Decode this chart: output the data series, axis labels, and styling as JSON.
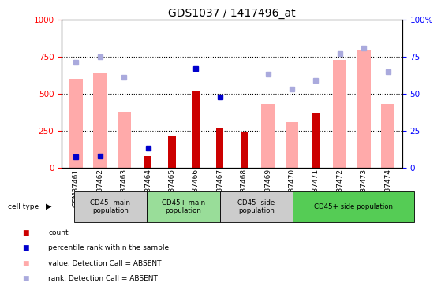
{
  "title": "GDS1037 / 1417496_at",
  "samples": [
    "GSM37461",
    "GSM37462",
    "GSM37463",
    "GSM37464",
    "GSM37465",
    "GSM37466",
    "GSM37467",
    "GSM37468",
    "GSM37469",
    "GSM37470",
    "GSM37471",
    "GSM37472",
    "GSM37473",
    "GSM37474"
  ],
  "count_values": [
    null,
    null,
    null,
    75,
    210,
    520,
    265,
    240,
    null,
    null,
    365,
    null,
    null,
    null
  ],
  "percentile_rank": [
    72,
    75,
    null,
    130,
    null,
    670,
    480,
    null,
    null,
    null,
    null,
    null,
    null,
    null
  ],
  "value_absent": [
    600,
    640,
    375,
    null,
    null,
    null,
    null,
    null,
    430,
    305,
    null,
    730,
    790,
    430
  ],
  "rank_absent": [
    710,
    750,
    610,
    null,
    null,
    null,
    null,
    null,
    630,
    530,
    590,
    770,
    810,
    650
  ],
  "cell_type_labels": [
    "CD45- main\npopulation",
    "CD45+ main\npopulation",
    "CD45- side\npopulation",
    "CD45+ side population"
  ],
  "cell_type_starts": [
    0,
    3,
    6,
    9
  ],
  "cell_type_ends": [
    3,
    6,
    9,
    14
  ],
  "cell_type_colors": [
    "#cccccc",
    "#99dd99",
    "#cccccc",
    "#55cc55"
  ],
  "ylim_left": [
    0,
    1000
  ],
  "ylim_right": [
    0,
    100
  ],
  "yticks_left": [
    0,
    250,
    500,
    750,
    1000
  ],
  "yticks_right": [
    0,
    25,
    50,
    75,
    100
  ],
  "bar_color_count": "#cc0000",
  "bar_color_value_absent": "#ffaaaa",
  "dot_color_percentile": "#0000cc",
  "dot_color_rank_absent": "#aaaadd"
}
